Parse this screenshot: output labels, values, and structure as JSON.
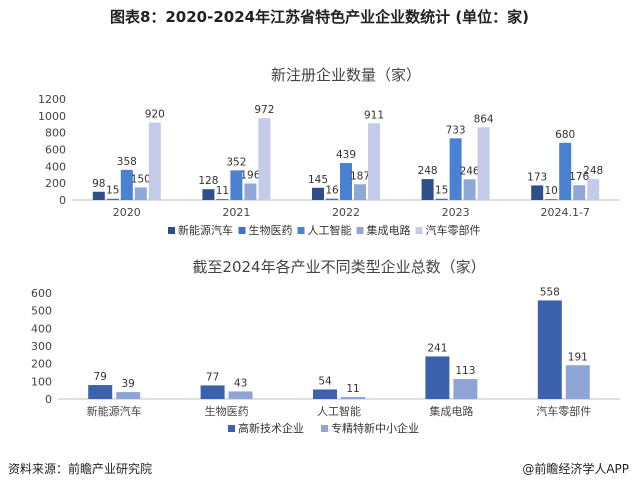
{
  "figure_title": "图表8：2020-2024年江苏省特色产业企业数统计 (单位：家)",
  "source": "资料来源：前瞻产业研究院",
  "credit": "@前瞻经济学人APP",
  "colors": {
    "新能源汽车": "#2e4f8c",
    "生物医药": "#3f73c4",
    "人工智能": "#4a82d1",
    "集成电路": "#8fa8d8",
    "汽车零部件": "#c3cbe8",
    "高新技术企业": "#3c62ad",
    "专精特新中小企业": "#8ea3d6"
  },
  "chart_data": [
    {
      "type": "bar",
      "title": "新注册企业数量（家）",
      "categories": [
        "2020",
        "2021",
        "2022",
        "2023",
        "2024.1-7"
      ],
      "series": [
        {
          "name": "新能源汽车",
          "values": [
            98,
            128,
            145,
            248,
            173
          ]
        },
        {
          "name": "生物医药",
          "values": [
            15,
            11,
            16,
            15,
            10
          ]
        },
        {
          "name": "人工智能",
          "values": [
            358,
            352,
            439,
            733,
            680
          ]
        },
        {
          "name": "集成电路",
          "values": [
            150,
            196,
            187,
            246,
            176
          ]
        },
        {
          "name": "汽车零部件",
          "values": [
            920,
            972,
            911,
            864,
            248
          ]
        }
      ],
      "yticks": [
        "0",
        "200",
        "400",
        "600",
        "800",
        "1000",
        "1200"
      ],
      "ylim": [
        0,
        1200
      ],
      "legend": "bottom"
    },
    {
      "type": "bar",
      "title": "截至2024年各产业不同类型企业总数（家）",
      "categories": [
        "新能源汽车",
        "生物医药",
        "人工智能",
        "集成电路",
        "汽车零部件"
      ],
      "series": [
        {
          "name": "高新技术企业",
          "values": [
            79,
            77,
            54,
            241,
            558
          ]
        },
        {
          "name": "专精特新中小企业",
          "values": [
            39,
            43,
            11,
            113,
            191
          ]
        }
      ],
      "yticks": [
        "0",
        "100",
        "200",
        "300",
        "400",
        "500",
        "600"
      ],
      "ylim": [
        0,
        600
      ],
      "legend": "bottom"
    }
  ]
}
